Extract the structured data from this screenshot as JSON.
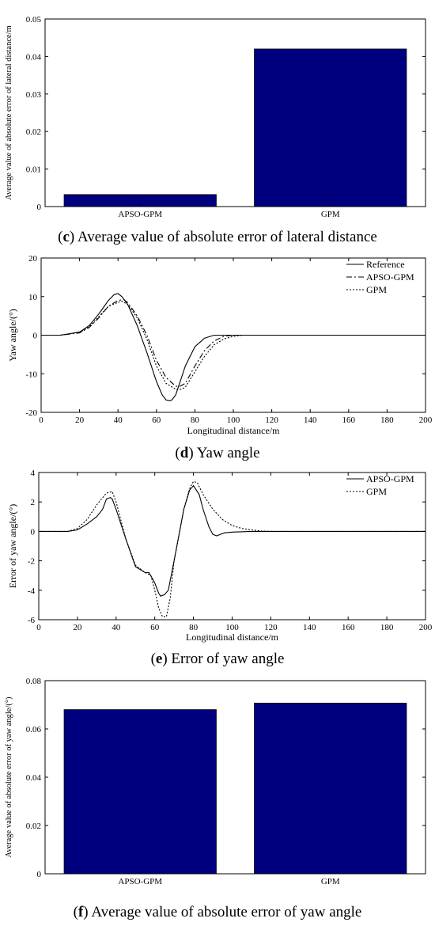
{
  "chart_data": [
    {
      "id": "c",
      "type": "bar",
      "caption_letter": "c",
      "caption_text": "Average value of absolute error of lateral distance",
      "ylabel": "Average value of absolute error of lateral distance/m",
      "xlabel": "",
      "categories": [
        "APSO-GPM",
        "GPM"
      ],
      "values": [
        0.0032,
        0.042
      ],
      "ylim": [
        0,
        0.05
      ],
      "yticks": [
        "0",
        "0.01",
        "0.02",
        "0.03",
        "0.04",
        "0.05"
      ],
      "bar_color": "#00007f"
    },
    {
      "id": "d",
      "type": "line",
      "caption_letter": "d",
      "caption_text": "Yaw angle",
      "ylabel": "Yaw angle/(°)",
      "xlabel": "Longitudinal distance/m",
      "xlim": [
        0,
        200
      ],
      "ylim": [
        -20,
        20
      ],
      "xticks": [
        "0",
        "20",
        "40",
        "60",
        "80",
        "100",
        "120",
        "140",
        "160",
        "180",
        "200"
      ],
      "yticks": [
        "-20",
        "-10",
        "0",
        "10",
        "20"
      ],
      "legend_position": "top-right",
      "series": [
        {
          "name": "Reference",
          "style": "solid",
          "x": [
            0,
            10,
            20,
            25,
            30,
            35,
            38,
            40,
            42,
            45,
            50,
            55,
            60,
            63,
            65,
            67,
            68,
            70,
            72,
            75,
            80,
            85,
            90,
            95,
            100,
            105,
            110,
            120,
            150,
            200
          ],
          "y": [
            0,
            0,
            0.8,
            2.5,
            5.5,
            9.0,
            10.5,
            10.8,
            10.0,
            8.0,
            2.5,
            -4.5,
            -12.0,
            -15.5,
            -16.8,
            -17.0,
            -16.8,
            -15.5,
            -12.5,
            -8.0,
            -3.0,
            -0.8,
            0,
            0,
            0,
            0,
            0,
            0,
            0,
            0
          ]
        },
        {
          "name": "APSO-GPM",
          "style": "dashdot",
          "x": [
            0,
            10,
            20,
            25,
            30,
            35,
            40,
            43,
            45,
            50,
            55,
            60,
            65,
            70,
            72,
            75,
            80,
            85,
            90,
            95,
            100,
            105,
            110,
            120,
            200
          ],
          "y": [
            0,
            0,
            0.6,
            2.0,
            4.5,
            7.5,
            9.0,
            9.2,
            8.5,
            5.0,
            0,
            -6.5,
            -11.0,
            -13.2,
            -13.3,
            -12.5,
            -8.0,
            -4.0,
            -1.5,
            -0.3,
            0,
            0,
            0,
            0,
            0
          ]
        },
        {
          "name": "GPM",
          "style": "dotted",
          "x": [
            0,
            10,
            20,
            25,
            30,
            35,
            40,
            42,
            45,
            50,
            55,
            60,
            65,
            70,
            73,
            75,
            80,
            85,
            90,
            95,
            100,
            105,
            110,
            120,
            200
          ],
          "y": [
            0,
            0,
            0.7,
            2.2,
            4.8,
            7.5,
            8.5,
            8.8,
            8.0,
            4.5,
            -1.0,
            -8.0,
            -12.5,
            -14.0,
            -14.0,
            -13.5,
            -9.5,
            -5.5,
            -2.5,
            -1.0,
            -0.3,
            0,
            0,
            0,
            0
          ]
        }
      ]
    },
    {
      "id": "e",
      "type": "line",
      "caption_letter": "e",
      "caption_text": "Error of yaw angle",
      "ylabel": "Error of yaw angle/(°)",
      "xlabel": "Longitudinal distance/m",
      "xlim": [
        0,
        200
      ],
      "ylim": [
        -6,
        4
      ],
      "xticks": [
        "0",
        "20",
        "40",
        "60",
        "80",
        "100",
        "120",
        "140",
        "160",
        "180",
        "200"
      ],
      "yticks": [
        "-6",
        "-4",
        "-2",
        "0",
        "2",
        "4"
      ],
      "legend_position": "top-right",
      "series": [
        {
          "name": "APSO-GPM",
          "style": "solid",
          "x": [
            0,
            15,
            20,
            25,
            30,
            33,
            35,
            37,
            38,
            40,
            45,
            50,
            55,
            57,
            60,
            62,
            63,
            65,
            67,
            70,
            75,
            78,
            80,
            83,
            85,
            88,
            90,
            92,
            94,
            96,
            100,
            110,
            200
          ],
          "y": [
            0,
            0,
            0.1,
            0.5,
            1.0,
            1.5,
            2.2,
            2.3,
            2.2,
            1.5,
            -0.5,
            -2.4,
            -2.8,
            -2.8,
            -3.5,
            -4.2,
            -4.4,
            -4.3,
            -4.0,
            -2.0,
            1.5,
            2.8,
            3.1,
            2.5,
            1.5,
            0.3,
            -0.2,
            -0.3,
            -0.2,
            -0.1,
            -0.05,
            0,
            0
          ]
        },
        {
          "name": "GPM",
          "style": "dotted",
          "x": [
            0,
            15,
            20,
            25,
            30,
            35,
            38,
            40,
            45,
            50,
            55,
            58,
            60,
            62,
            64,
            66,
            68,
            70,
            75,
            78,
            80,
            82,
            85,
            90,
            95,
            100,
            105,
            110,
            115,
            120,
            200
          ],
          "y": [
            0,
            0,
            0.2,
            0.8,
            1.8,
            2.6,
            2.7,
            2.0,
            -0.5,
            -2.3,
            -2.8,
            -3.0,
            -4.0,
            -5.2,
            -5.8,
            -5.8,
            -4.5,
            -2.0,
            1.5,
            2.9,
            3.4,
            3.3,
            2.5,
            1.5,
            0.8,
            0.4,
            0.2,
            0.1,
            0.02,
            0,
            0
          ]
        }
      ]
    },
    {
      "id": "f",
      "type": "bar",
      "caption_letter": "f",
      "caption_text": "Average value of absolute error of yaw angle",
      "ylabel": "Average value of absolute error of yaw angle/(°)",
      "xlabel": "",
      "categories": [
        "APSO-GPM",
        "GPM"
      ],
      "values": [
        0.068,
        0.0707
      ],
      "ylim": [
        0,
        0.08
      ],
      "yticks": [
        "0",
        "0.02",
        "0.04",
        "0.06",
        "0.08"
      ],
      "bar_color": "#00007f"
    }
  ]
}
